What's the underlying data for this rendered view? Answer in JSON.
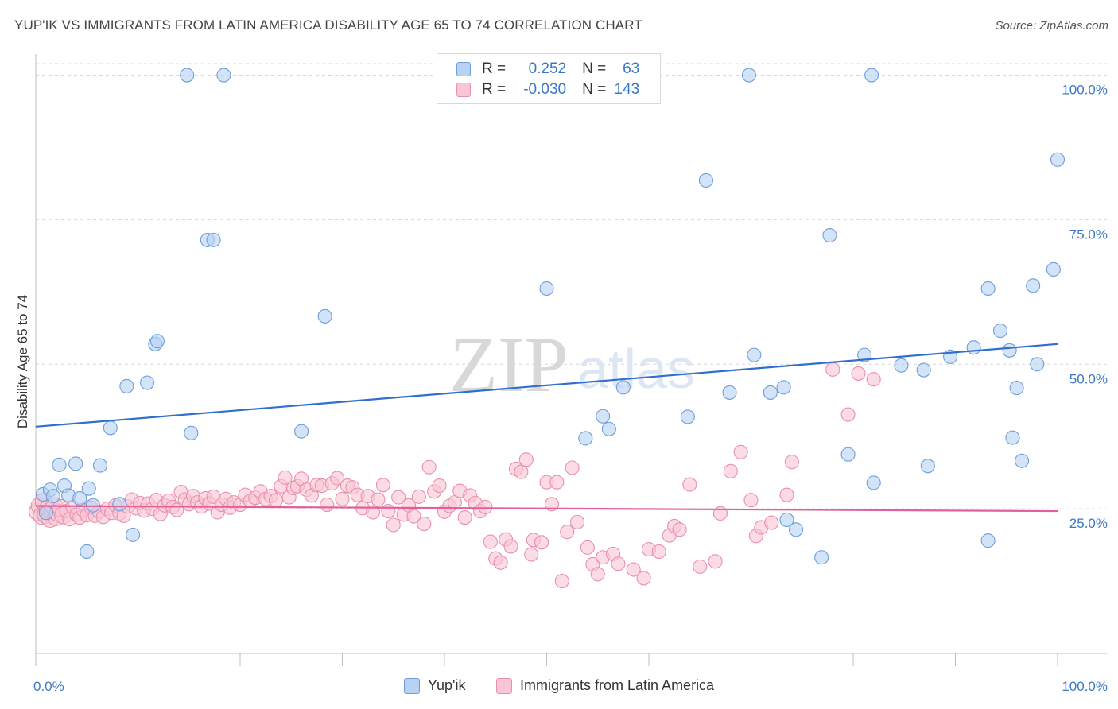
{
  "title": "YUP'IK VS IMMIGRANTS FROM LATIN AMERICA DISABILITY AGE 65 TO 74 CORRELATION CHART",
  "source": "Source: ZipAtlas.com",
  "watermark": {
    "zip": "ZIP",
    "atlas": "atlas"
  },
  "legend": {
    "r_label": "R =",
    "n_label": "N =",
    "rows": [
      {
        "r": "0.252",
        "n": "63",
        "swatch": "blue"
      },
      {
        "r": "-0.030",
        "n": "143",
        "swatch": "pink"
      }
    ]
  },
  "colors": {
    "blue_fill": "#b8d2f3",
    "blue_stroke": "#6e9fd9",
    "blue_line": "#2f6fcd",
    "pink_fill": "#f8c6d4",
    "pink_stroke": "#ea8fae",
    "pink_line": "#e0609a",
    "tick_label": "#3a78c9",
    "grid": "#d8d8d8"
  },
  "chart_data": {
    "type": "scatter",
    "title": "YUP'IK VS IMMIGRANTS FROM LATIN AMERICA DISABILITY AGE 65 TO 74 CORRELATION CHART",
    "xlabel": "",
    "ylabel": "Disability Age 65 to 74",
    "xlim": [
      0,
      100
    ],
    "ylim": [
      0,
      102
    ],
    "x_tick_labels": [
      "0.0%",
      "100.0%"
    ],
    "y_ticks": [
      25,
      50,
      75,
      100
    ],
    "y_tick_labels": [
      "25.0%",
      "50.0%",
      "75.0%",
      "100.0%"
    ],
    "legend_position": "bottom-center",
    "series": [
      {
        "name": "Yup'ik",
        "color": "blue",
        "trend": {
          "x": [
            0,
            100
          ],
          "y": [
            39.2,
            53.5
          ]
        },
        "points": [
          [
            0.7,
            27.5
          ],
          [
            1.0,
            24.3
          ],
          [
            1.4,
            28.3
          ],
          [
            1.7,
            27.2
          ],
          [
            2.3,
            32.6
          ],
          [
            2.8,
            29.0
          ],
          [
            3.2,
            27.3
          ],
          [
            3.9,
            32.8
          ],
          [
            4.3,
            26.8
          ],
          [
            5.0,
            17.6
          ],
          [
            5.2,
            28.5
          ],
          [
            5.6,
            25.6
          ],
          [
            6.3,
            32.5
          ],
          [
            7.3,
            39.0
          ],
          [
            8.2,
            25.8
          ],
          [
            8.9,
            46.2
          ],
          [
            9.5,
            20.5
          ],
          [
            10.9,
            46.8
          ],
          [
            11.7,
            53.5
          ],
          [
            11.9,
            54.0
          ],
          [
            14.8,
            100.0
          ],
          [
            15.2,
            38.1
          ],
          [
            16.8,
            71.5
          ],
          [
            17.4,
            71.5
          ],
          [
            18.4,
            100.0
          ],
          [
            26.0,
            38.4
          ],
          [
            28.3,
            58.3
          ],
          [
            50.0,
            63.1
          ],
          [
            53.8,
            37.2
          ],
          [
            55.5,
            41.0
          ],
          [
            56.1,
            38.8
          ],
          [
            57.5,
            46.0
          ],
          [
            63.8,
            40.9
          ],
          [
            65.6,
            81.8
          ],
          [
            67.9,
            45.1
          ],
          [
            69.8,
            100.0
          ],
          [
            70.3,
            51.6
          ],
          [
            71.9,
            45.1
          ],
          [
            73.2,
            46.0
          ],
          [
            73.5,
            23.1
          ],
          [
            74.4,
            21.4
          ],
          [
            76.9,
            16.6
          ],
          [
            77.7,
            72.3
          ],
          [
            79.5,
            34.4
          ],
          [
            81.1,
            51.6
          ],
          [
            81.8,
            100.0
          ],
          [
            82.0,
            29.5
          ],
          [
            84.7,
            49.8
          ],
          [
            86.9,
            49.0
          ],
          [
            87.3,
            32.4
          ],
          [
            89.5,
            51.3
          ],
          [
            91.8,
            52.9
          ],
          [
            93.2,
            63.1
          ],
          [
            93.2,
            19.5
          ],
          [
            94.4,
            55.8
          ],
          [
            95.3,
            52.4
          ],
          [
            95.6,
            37.3
          ],
          [
            96.0,
            45.9
          ],
          [
            96.5,
            33.3
          ],
          [
            97.6,
            63.6
          ],
          [
            98.0,
            50.0
          ],
          [
            99.6,
            66.4
          ],
          [
            100.0,
            85.4
          ]
        ]
      },
      {
        "name": "Immigrants from Latin America",
        "color": "pink",
        "trend": {
          "x": [
            0,
            100
          ],
          "y": [
            25.5,
            24.6
          ]
        },
        "points": [
          [
            0.2,
            24.5
          ],
          [
            0.4,
            25.5
          ],
          [
            0.6,
            23.8
          ],
          [
            0.8,
            26.2
          ],
          [
            1.0,
            24.0
          ],
          [
            1.2,
            25.0
          ],
          [
            1.4,
            23.3
          ],
          [
            1.6,
            24.7
          ],
          [
            1.8,
            25.4
          ],
          [
            2.0,
            23.6
          ],
          [
            2.2,
            24.3
          ],
          [
            2.5,
            25.1
          ],
          [
            2.7,
            23.9
          ],
          [
            3.0,
            24.6
          ],
          [
            3.3,
            23.2
          ],
          [
            3.6,
            25.3
          ],
          [
            4.0,
            24.0
          ],
          [
            4.3,
            23.5
          ],
          [
            4.6,
            24.8
          ],
          [
            5.0,
            23.9
          ],
          [
            5.4,
            25.2
          ],
          [
            5.8,
            23.8
          ],
          [
            6.2,
            24.5
          ],
          [
            6.6,
            23.6
          ],
          [
            7.0,
            25.0
          ],
          [
            7.4,
            24.3
          ],
          [
            7.8,
            25.6
          ],
          [
            8.2,
            24.2
          ],
          [
            8.6,
            23.8
          ],
          [
            9.0,
            25.4
          ],
          [
            9.4,
            26.6
          ],
          [
            9.8,
            25.1
          ],
          [
            10.2,
            26.0
          ],
          [
            10.6,
            24.7
          ],
          [
            11.0,
            25.9
          ],
          [
            11.4,
            25.0
          ],
          [
            11.8,
            26.5
          ],
          [
            12.2,
            24.1
          ],
          [
            12.6,
            25.6
          ],
          [
            13.0,
            26.4
          ],
          [
            13.4,
            25.3
          ],
          [
            13.8,
            24.8
          ],
          [
            14.2,
            27.9
          ],
          [
            14.6,
            26.6
          ],
          [
            15.0,
            25.8
          ],
          [
            15.4,
            27.2
          ],
          [
            15.8,
            26.1
          ],
          [
            16.2,
            25.4
          ],
          [
            16.6,
            26.8
          ],
          [
            17.0,
            25.9
          ],
          [
            17.4,
            27.1
          ],
          [
            17.8,
            24.4
          ],
          [
            18.2,
            25.7
          ],
          [
            18.6,
            26.7
          ],
          [
            19.0,
            25.2
          ],
          [
            19.4,
            26.1
          ],
          [
            20.0,
            25.7
          ],
          [
            20.5,
            27.4
          ],
          [
            21.0,
            26.4
          ],
          [
            21.5,
            26.9
          ],
          [
            22.0,
            28.0
          ],
          [
            22.5,
            26.7
          ],
          [
            23.0,
            27.2
          ],
          [
            23.5,
            26.5
          ],
          [
            24.0,
            28.9
          ],
          [
            24.4,
            30.4
          ],
          [
            24.8,
            27.0
          ],
          [
            25.2,
            28.6
          ],
          [
            25.6,
            28.9
          ],
          [
            26.0,
            30.2
          ],
          [
            26.5,
            28.3
          ],
          [
            27.0,
            27.3
          ],
          [
            27.5,
            29.1
          ],
          [
            28.0,
            29.0
          ],
          [
            28.5,
            25.7
          ],
          [
            29.0,
            29.4
          ],
          [
            29.5,
            30.3
          ],
          [
            30.0,
            26.7
          ],
          [
            30.5,
            29.0
          ],
          [
            31.0,
            28.7
          ],
          [
            31.5,
            27.4
          ],
          [
            32.0,
            25.1
          ],
          [
            32.5,
            27.2
          ],
          [
            33.0,
            24.4
          ],
          [
            33.5,
            26.6
          ],
          [
            34.0,
            29.1
          ],
          [
            34.5,
            24.6
          ],
          [
            35.0,
            22.2
          ],
          [
            35.5,
            27.0
          ],
          [
            36.0,
            24.0
          ],
          [
            36.5,
            25.6
          ],
          [
            37.0,
            23.7
          ],
          [
            37.5,
            27.1
          ],
          [
            38.0,
            22.4
          ],
          [
            38.5,
            32.2
          ],
          [
            39.0,
            28.0
          ],
          [
            39.5,
            29.0
          ],
          [
            40.0,
            24.5
          ],
          [
            40.5,
            25.5
          ],
          [
            41.0,
            26.1
          ],
          [
            41.5,
            28.1
          ],
          [
            42.0,
            23.5
          ],
          [
            42.5,
            27.3
          ],
          [
            43.0,
            26.0
          ],
          [
            43.5,
            24.6
          ],
          [
            44.0,
            25.3
          ],
          [
            44.5,
            19.3
          ],
          [
            45.0,
            16.4
          ],
          [
            45.5,
            15.7
          ],
          [
            46.0,
            19.7
          ],
          [
            46.5,
            18.5
          ],
          [
            47.0,
            31.9
          ],
          [
            47.5,
            31.4
          ],
          [
            48.0,
            33.5
          ],
          [
            48.5,
            17.1
          ],
          [
            48.7,
            19.6
          ],
          [
            49.5,
            19.2
          ],
          [
            50.0,
            29.6
          ],
          [
            50.5,
            25.8
          ],
          [
            51.0,
            29.6
          ],
          [
            51.5,
            12.5
          ],
          [
            52.0,
            21.0
          ],
          [
            52.5,
            32.1
          ],
          [
            53.0,
            22.7
          ],
          [
            54.0,
            18.3
          ],
          [
            54.5,
            15.4
          ],
          [
            55.0,
            13.7
          ],
          [
            55.5,
            16.6
          ],
          [
            56.5,
            17.2
          ],
          [
            57.0,
            15.5
          ],
          [
            58.5,
            14.5
          ],
          [
            59.5,
            13.0
          ],
          [
            60.0,
            18.0
          ],
          [
            61.0,
            17.6
          ],
          [
            62.0,
            20.4
          ],
          [
            62.5,
            22.0
          ],
          [
            63.0,
            21.4
          ],
          [
            64.0,
            29.2
          ],
          [
            65.0,
            15.0
          ],
          [
            66.5,
            15.9
          ],
          [
            67.0,
            24.2
          ],
          [
            68.0,
            31.5
          ],
          [
            69.0,
            34.8
          ],
          [
            70.0,
            26.5
          ],
          [
            70.5,
            20.3
          ],
          [
            71.0,
            21.8
          ],
          [
            72.0,
            22.6
          ],
          [
            73.5,
            27.4
          ],
          [
            74.0,
            33.1
          ],
          [
            78.0,
            49.1
          ],
          [
            79.5,
            41.3
          ],
          [
            80.5,
            48.4
          ],
          [
            82.0,
            47.4
          ]
        ]
      }
    ]
  },
  "bottom_legend": [
    "Yup'ik",
    "Immigrants from Latin America"
  ]
}
